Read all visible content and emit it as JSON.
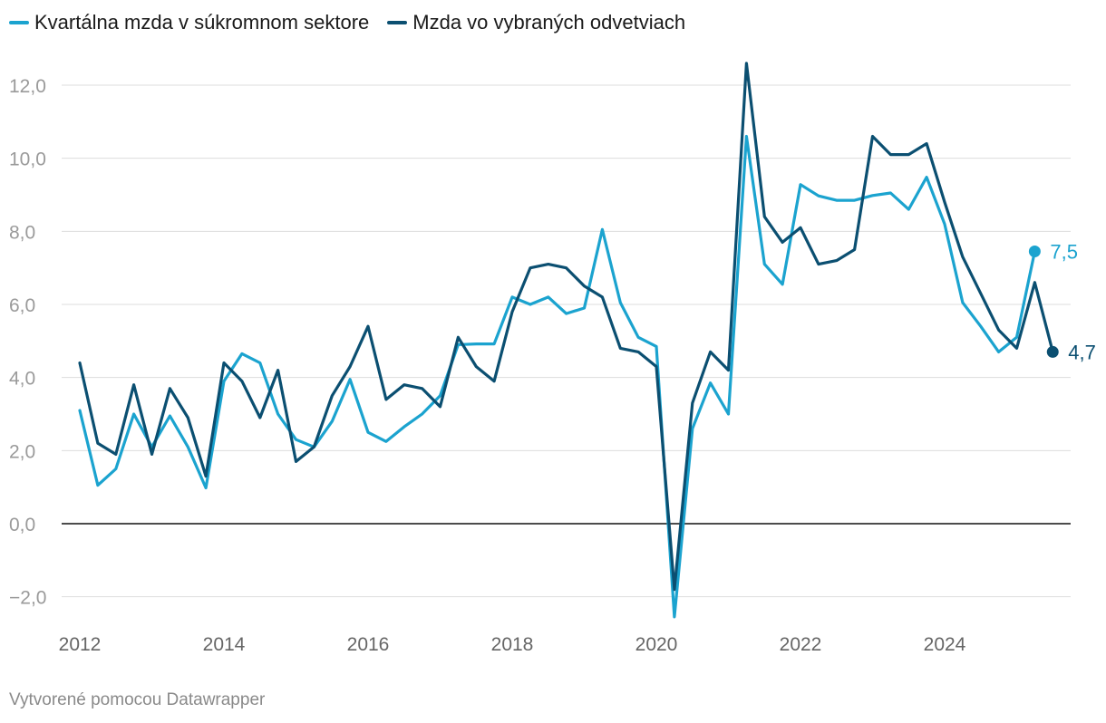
{
  "chart_data": {
    "type": "line",
    "title": "",
    "xlabel": "",
    "ylabel": "",
    "ylim": [
      -2.8,
      12.8
    ],
    "y_ticks": [
      -2,
      0,
      2,
      4,
      6,
      8,
      10,
      12
    ],
    "y_tick_labels": [
      "−2,0",
      "0,0",
      "2,0",
      "4,0",
      "6,0",
      "8,0",
      "10,0",
      "12,0"
    ],
    "x_ticks": [
      2012,
      2014,
      2016,
      2018,
      2020,
      2022,
      2024
    ],
    "x_tick_labels": [
      "2012",
      "2014",
      "2016",
      "2018",
      "2020",
      "2022",
      "2024"
    ],
    "grid": true,
    "legend_position": "top-left",
    "series": [
      {
        "name": "Kvartálna mzda v súkromnom sektore",
        "color": "#1ba3cf",
        "end_label": "7,5",
        "x": [
          2012.0,
          2012.25,
          2012.5,
          2012.75,
          2013.0,
          2013.25,
          2013.5,
          2013.75,
          2014.0,
          2014.25,
          2014.5,
          2014.75,
          2015.0,
          2015.25,
          2015.5,
          2015.75,
          2016.0,
          2016.25,
          2016.5,
          2016.75,
          2017.0,
          2017.25,
          2017.5,
          2017.75,
          2018.0,
          2018.25,
          2018.5,
          2018.75,
          2019.0,
          2019.25,
          2019.5,
          2019.75,
          2020.0,
          2020.25,
          2020.5,
          2020.75,
          2021.0,
          2021.25,
          2021.5,
          2021.75,
          2022.0,
          2022.25,
          2022.5,
          2022.75,
          2023.0,
          2023.25,
          2023.5,
          2023.75,
          2024.0,
          2024.25,
          2024.5,
          2024.75,
          2025.0,
          2025.25
        ],
        "values": [
          3.1,
          1.05,
          1.5,
          3.0,
          2.1,
          2.95,
          2.1,
          0.98,
          3.9,
          4.65,
          4.4,
          3.0,
          2.3,
          2.1,
          2.8,
          3.95,
          2.5,
          2.25,
          2.65,
          3.0,
          3.5,
          4.9,
          4.92,
          4.92,
          6.2,
          6.0,
          6.2,
          5.75,
          5.9,
          8.05,
          6.05,
          5.1,
          4.85,
          -2.55,
          2.6,
          3.85,
          3.0,
          10.6,
          7.1,
          6.55,
          9.28,
          8.97,
          8.85,
          8.85,
          8.98,
          9.05,
          8.6,
          9.48,
          8.2,
          6.05,
          5.4,
          4.7,
          5.1,
          7.45
        ]
      },
      {
        "name": "Mzda vo vybraných odvetviach",
        "color": "#0b4f71",
        "end_label": "4,7",
        "x": [
          2012.0,
          2012.25,
          2012.5,
          2012.75,
          2013.0,
          2013.25,
          2013.5,
          2013.75,
          2014.0,
          2014.25,
          2014.5,
          2014.75,
          2015.0,
          2015.25,
          2015.5,
          2015.75,
          2016.0,
          2016.25,
          2016.5,
          2016.75,
          2017.0,
          2017.25,
          2017.5,
          2017.75,
          2018.0,
          2018.25,
          2018.5,
          2018.75,
          2019.0,
          2019.25,
          2019.5,
          2019.75,
          2020.0,
          2020.25,
          2020.5,
          2020.75,
          2021.0,
          2021.25,
          2021.5,
          2021.75,
          2022.0,
          2022.25,
          2022.5,
          2022.75,
          2023.0,
          2023.25,
          2023.5,
          2023.75,
          2024.0,
          2024.25,
          2024.5,
          2024.75,
          2025.0,
          2025.25,
          2025.5
        ],
        "values": [
          4.4,
          2.2,
          1.9,
          3.8,
          1.9,
          3.7,
          2.9,
          1.3,
          4.4,
          3.9,
          2.9,
          4.2,
          1.7,
          2.1,
          3.5,
          4.3,
          5.4,
          3.4,
          3.8,
          3.7,
          3.2,
          5.1,
          4.3,
          3.9,
          5.8,
          7.0,
          7.1,
          7.0,
          6.5,
          6.2,
          4.8,
          4.7,
          4.3,
          -1.8,
          3.3,
          4.7,
          4.2,
          12.6,
          8.4,
          7.7,
          8.1,
          7.1,
          7.2,
          7.5,
          10.6,
          10.1,
          10.1,
          10.4,
          8.8,
          7.3,
          6.3,
          5.3,
          4.8,
          6.6,
          4.7
        ]
      }
    ]
  },
  "footer": {
    "credit": "Vytvorené pomocou Datawrapper"
  }
}
